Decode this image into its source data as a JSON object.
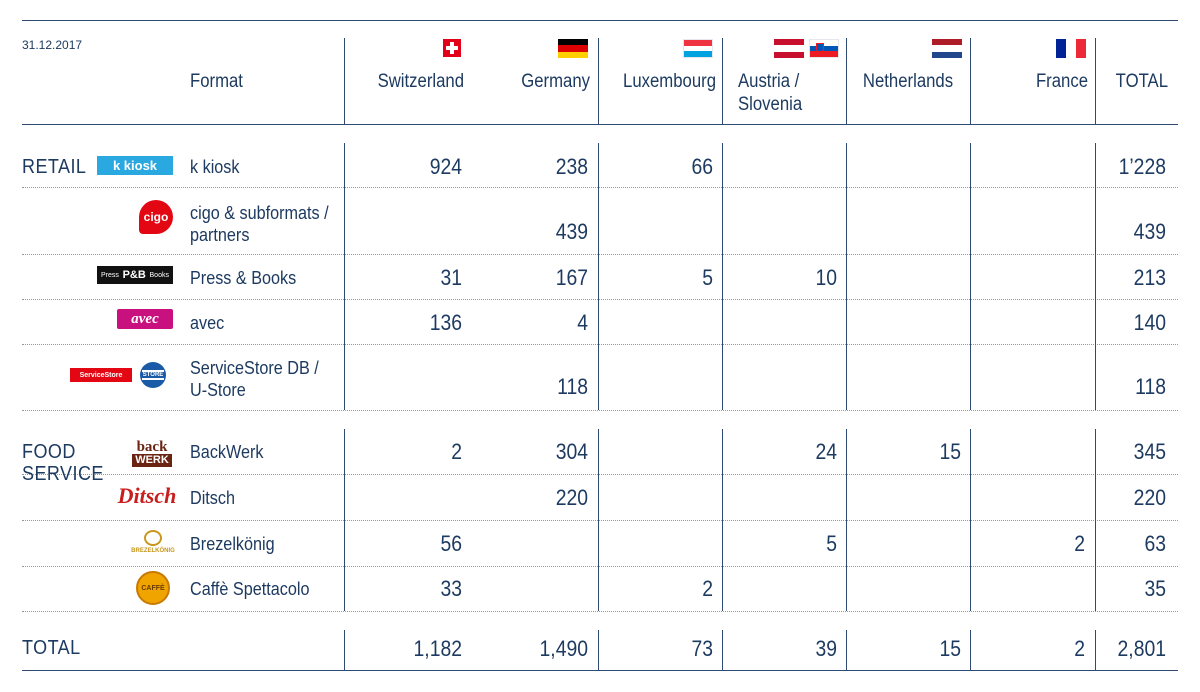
{
  "date": "31.12.2017",
  "header": {
    "format": "Format",
    "countries": [
      "Switzerland",
      "Germany",
      "Luxembourg",
      "Austria /\nSlovenia",
      "Netherlands",
      "France",
      "TOTAL"
    ]
  },
  "sections": {
    "retail": "RETAIL",
    "food_service": "FOOD\nSERVICE",
    "total": "TOTAL"
  },
  "logos": {
    "kkiosk": "k kiosk",
    "cigo": "cigo",
    "pb_press": "Press",
    "pb_books": "Books",
    "pb_mark": "P&B",
    "avec": "avec",
    "servicestore": "ServiceStore",
    "ustore": "STORE",
    "backwerk_1": "back",
    "backwerk_2": "WERK",
    "ditsch": "Ditsch",
    "brezel": "BREZELKÖNIG",
    "caffe": "CAFFÈ"
  },
  "flag_colors": {
    "swiss_red": "#e2001a",
    "german_black": "#000000",
    "german_red": "#dd0000",
    "german_gold": "#ffce00",
    "lux_red": "#ef3340",
    "lux_blue": "#00a3e0",
    "aut_red": "#c8102e",
    "slo_blue": "#0057b8",
    "slo_red": "#ed1c24",
    "nl_red": "#ae1c28",
    "nl_blue": "#21468b",
    "fr_blue": "#002395",
    "fr_red": "#ed2939"
  },
  "rows": [
    {
      "format": "k kiosk",
      "values": [
        "924",
        "238",
        "66",
        "",
        "",
        "",
        "1’228"
      ]
    },
    {
      "format": "cigo & subformats /\npartners",
      "values": [
        "",
        "439",
        "",
        "",
        "",
        "",
        "439"
      ]
    },
    {
      "format": "Press & Books",
      "values": [
        "31",
        "167",
        "5",
        "10",
        "",
        "",
        "213"
      ]
    },
    {
      "format": "avec",
      "values": [
        "136",
        "4",
        "",
        "",
        "",
        "",
        "140"
      ]
    },
    {
      "format": "ServiceStore DB /\nU-Store",
      "values": [
        "",
        "118",
        "",
        "",
        "",
        "",
        "118"
      ]
    },
    {
      "format": "BackWerk",
      "values": [
        "2",
        "304",
        "",
        "24",
        "15",
        "",
        "345"
      ]
    },
    {
      "format": "Ditsch",
      "values": [
        "",
        "220",
        "",
        "",
        "",
        "",
        "220"
      ]
    },
    {
      "format": "Brezelkönig",
      "values": [
        "56",
        "",
        "",
        "5",
        "",
        "2",
        "63"
      ]
    },
    {
      "format": "Caffè Spettacolo",
      "values": [
        "33",
        "",
        "2",
        "",
        "",
        "",
        "35"
      ]
    }
  ],
  "totals": [
    "1,182",
    "1,490",
    "73",
    "39",
    "15",
    "2",
    "2,801"
  ]
}
